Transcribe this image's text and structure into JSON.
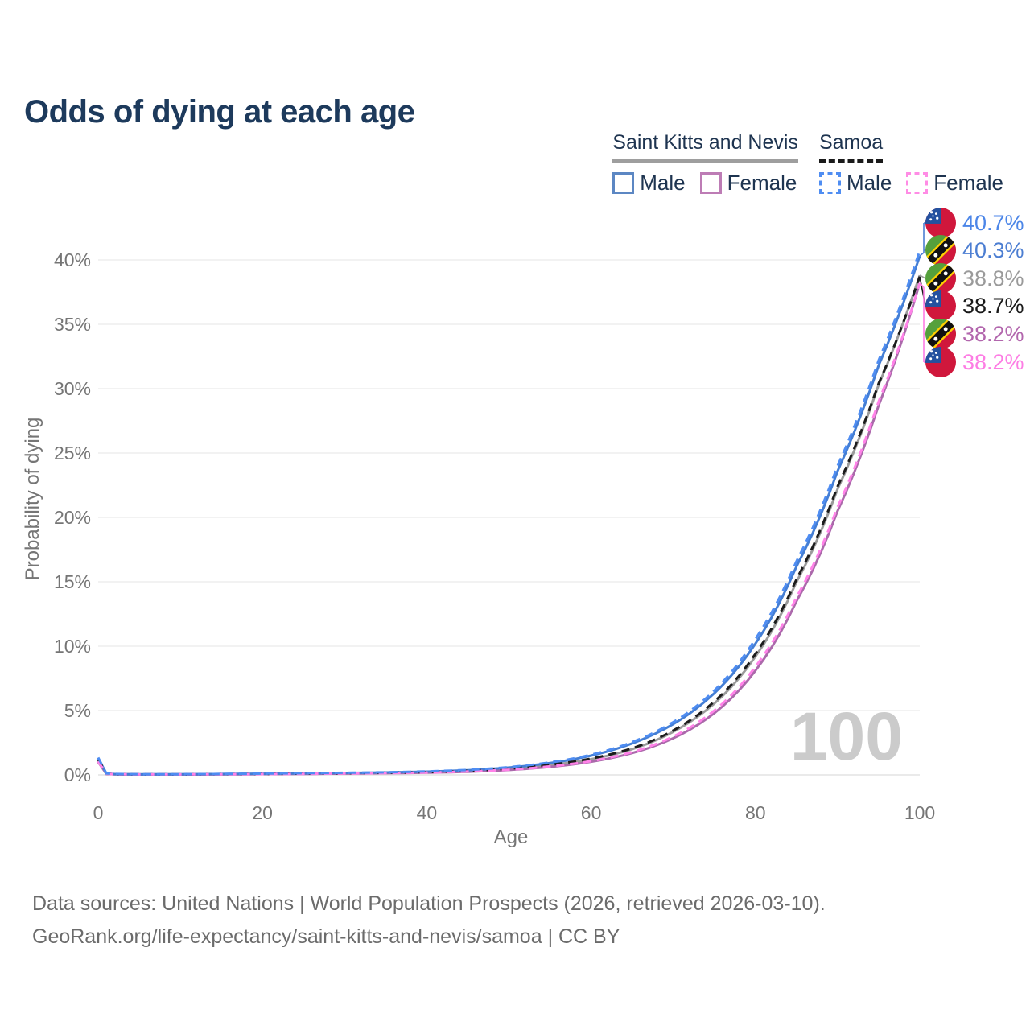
{
  "title": "Odds of dying at each age",
  "legend": {
    "groups": [
      {
        "label": "Saint Kitts and Nevis",
        "line_style": "solid",
        "underline_color": "#9e9e9e"
      },
      {
        "label": "Samoa",
        "line_style": "dashed",
        "underline_color": "#1a1a1a"
      }
    ],
    "items": [
      {
        "label": "Male",
        "group": "Saint Kitts and Nevis",
        "swatch_color": "#5c87c3",
        "swatch_style": "solid"
      },
      {
        "label": "Female",
        "group": "Saint Kitts and Nevis",
        "swatch_color": "#bd7cb5",
        "swatch_style": "solid"
      },
      {
        "label": "Male",
        "group": "Samoa",
        "swatch_color": "#4f8df2",
        "swatch_style": "dashed"
      },
      {
        "label": "Female",
        "group": "Samoa",
        "swatch_color": "#ff8ce5",
        "swatch_style": "dashed"
      }
    ]
  },
  "chart_data": {
    "type": "line",
    "title": "Odds of dying at each age",
    "xlabel": "Age",
    "ylabel": "Probability of dying",
    "x_ticks": [
      0,
      20,
      40,
      60,
      80,
      100
    ],
    "y_ticks_percent": [
      0,
      5,
      10,
      15,
      20,
      25,
      30,
      35,
      40
    ],
    "xlim": [
      0,
      100
    ],
    "ylim_percent": [
      0,
      42
    ],
    "grid": "horizontal",
    "watermark_age": "100",
    "ages": [
      0,
      1,
      2,
      5,
      10,
      15,
      20,
      25,
      30,
      35,
      40,
      45,
      50,
      55,
      60,
      65,
      70,
      75,
      80,
      85,
      90,
      95,
      100
    ],
    "series": [
      {
        "name": "Saint Kitts and Nevis Both sexes",
        "country": "Saint Kitts and Nevis",
        "sex": "Both",
        "color": "#9b9b9b",
        "dash": false,
        "values_percent": [
          1.15,
          0.09,
          0.05,
          0.04,
          0.04,
          0.05,
          0.07,
          0.09,
          0.12,
          0.15,
          0.2,
          0.29,
          0.46,
          0.75,
          1.22,
          2.0,
          3.35,
          5.55,
          9.2,
          15.0,
          22.2,
          30.3,
          38.8
        ]
      },
      {
        "name": "Saint Kitts and Nevis Female",
        "country": "Saint Kitts and Nevis",
        "sex": "Female",
        "color": "#ab69ab",
        "dash": false,
        "values_percent": [
          1.0,
          0.08,
          0.05,
          0.03,
          0.03,
          0.04,
          0.06,
          0.08,
          0.1,
          0.13,
          0.17,
          0.24,
          0.38,
          0.62,
          1.02,
          1.7,
          2.85,
          4.8,
          8.1,
          13.5,
          20.5,
          28.7,
          38.2
        ]
      },
      {
        "name": "Saint Kitts and Nevis Male",
        "country": "Saint Kitts and Nevis",
        "sex": "Male",
        "color": "#447ed4",
        "dash": false,
        "values_percent": [
          1.3,
          0.1,
          0.06,
          0.04,
          0.05,
          0.07,
          0.09,
          0.12,
          0.15,
          0.19,
          0.25,
          0.36,
          0.57,
          0.92,
          1.5,
          2.45,
          3.95,
          6.35,
          10.2,
          16.2,
          23.6,
          31.8,
          40.3
        ]
      },
      {
        "name": "Samoa Both sexes",
        "country": "Samoa",
        "sex": "Both",
        "color": "#1c1c1c",
        "dash": true,
        "values_percent": [
          1.2,
          0.09,
          0.06,
          0.04,
          0.04,
          0.06,
          0.08,
          0.1,
          0.13,
          0.16,
          0.21,
          0.31,
          0.48,
          0.78,
          1.27,
          2.07,
          3.45,
          5.7,
          9.4,
          15.2,
          22.4,
          30.4,
          38.7
        ]
      },
      {
        "name": "Samoa Female",
        "country": "Samoa",
        "sex": "Female",
        "color": "#ff82e8",
        "dash": true,
        "values_percent": [
          1.05,
          0.08,
          0.05,
          0.04,
          0.04,
          0.05,
          0.06,
          0.08,
          0.11,
          0.14,
          0.18,
          0.26,
          0.4,
          0.66,
          1.07,
          1.78,
          2.98,
          5.0,
          8.4,
          13.8,
          20.8,
          29.0,
          38.2
        ]
      },
      {
        "name": "Samoa Male",
        "country": "Samoa",
        "sex": "Male",
        "color": "#4f8df2",
        "dash": true,
        "values_percent": [
          1.35,
          0.11,
          0.07,
          0.05,
          0.05,
          0.07,
          0.1,
          0.13,
          0.16,
          0.2,
          0.27,
          0.38,
          0.6,
          0.97,
          1.57,
          2.55,
          4.1,
          6.55,
          10.55,
          16.6,
          24.0,
          32.2,
          40.7
        ]
      }
    ],
    "end_labels": [
      {
        "flag": "samoa",
        "series": "Samoa Male",
        "value": "40.7%",
        "color": "#4c86e8"
      },
      {
        "flag": "saint-kitts-and-nevis",
        "series": "Saint Kitts and Nevis Male",
        "value": "40.3%",
        "color": "#4c7ed2"
      },
      {
        "flag": "saint-kitts-and-nevis",
        "series": "Saint Kitts and Nevis Both sexes",
        "value": "38.8%",
        "color": "#9a9a9a"
      },
      {
        "flag": "samoa",
        "series": "Samoa Both sexes",
        "value": "38.7%",
        "color": "#1a1a1a"
      },
      {
        "flag": "saint-kitts-and-nevis",
        "series": "Saint Kitts and Nevis Female",
        "value": "38.2%",
        "color": "#b266ad"
      },
      {
        "flag": "samoa",
        "series": "Samoa Female",
        "value": "38.2%",
        "color": "#fd7de4"
      }
    ]
  },
  "footer": {
    "line1": "Data sources: United Nations | World Population Prospects (2026, retrieved 2026-03-10).",
    "line2": "GeoRank.org/life-expectancy/saint-kitts-and-nevis/samoa | CC BY"
  }
}
